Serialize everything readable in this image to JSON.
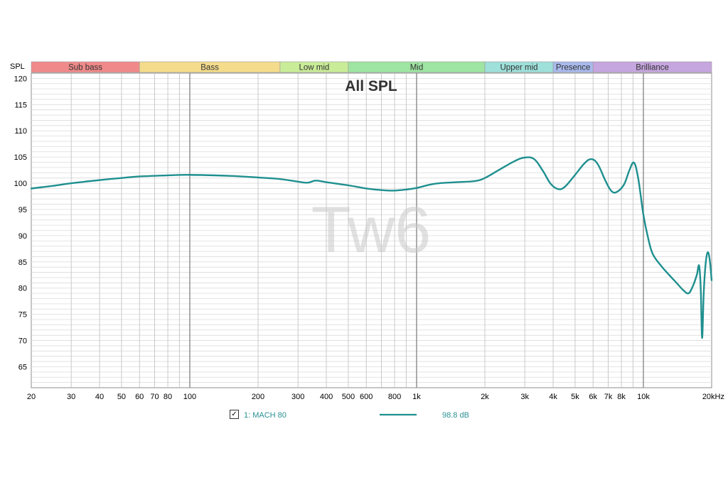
{
  "chart_data": {
    "type": "line",
    "title": "All SPL",
    "watermark": "Tw6",
    "ylabel": "SPL",
    "x_scale": "log",
    "xlim": [
      20,
      20000
    ],
    "ylim": [
      61,
      121
    ],
    "grid": true,
    "x_ticks": [
      {
        "value": 20,
        "label": "20"
      },
      {
        "value": 30,
        "label": "30"
      },
      {
        "value": 40,
        "label": "40"
      },
      {
        "value": 50,
        "label": "50"
      },
      {
        "value": 60,
        "label": "60"
      },
      {
        "value": 70,
        "label": "70"
      },
      {
        "value": 80,
        "label": "80"
      },
      {
        "value": 100,
        "label": "100"
      },
      {
        "value": 200,
        "label": "200"
      },
      {
        "value": 300,
        "label": "300"
      },
      {
        "value": 400,
        "label": "400"
      },
      {
        "value": 500,
        "label": "500"
      },
      {
        "value": 600,
        "label": "600"
      },
      {
        "value": 800,
        "label": "800"
      },
      {
        "value": 1000,
        "label": "1k"
      },
      {
        "value": 2000,
        "label": "2k"
      },
      {
        "value": 3000,
        "label": "3k"
      },
      {
        "value": 4000,
        "label": "4k"
      },
      {
        "value": 5000,
        "label": "5k"
      },
      {
        "value": 6000,
        "label": "6k"
      },
      {
        "value": 7000,
        "label": "7k"
      },
      {
        "value": 8000,
        "label": "8k"
      },
      {
        "value": 10000,
        "label": "10k"
      },
      {
        "value": 20000,
        "label": "20kHz"
      }
    ],
    "y_ticks": [
      65,
      70,
      75,
      80,
      85,
      90,
      95,
      100,
      105,
      110,
      115,
      120
    ],
    "bands": [
      {
        "label": "Sub bass",
        "from": 20,
        "to": 60,
        "color": "#f08a8a"
      },
      {
        "label": "Bass",
        "from": 60,
        "to": 250,
        "color": "#f4dc8c"
      },
      {
        "label": "Low mid",
        "from": 250,
        "to": 500,
        "color": "#c9ec98"
      },
      {
        "label": "Mid",
        "from": 500,
        "to": 2000,
        "color": "#9ee4a2"
      },
      {
        "label": "Upper mid",
        "from": 2000,
        "to": 4000,
        "color": "#9ee0da"
      },
      {
        "label": "Presence",
        "from": 4000,
        "to": 6000,
        "color": "#a9b9ec"
      },
      {
        "label": "Brilliance",
        "from": 6000,
        "to": 20000,
        "color": "#c6a6de"
      }
    ],
    "series": [
      {
        "name": "1: MACH 80",
        "legend_value": "98.8 dB",
        "color": "#1f8f8f",
        "points": [
          [
            20,
            99.0
          ],
          [
            25,
            99.5
          ],
          [
            30,
            100.0
          ],
          [
            40,
            100.6
          ],
          [
            50,
            101.0
          ],
          [
            60,
            101.3
          ],
          [
            80,
            101.5
          ],
          [
            100,
            101.6
          ],
          [
            150,
            101.4
          ],
          [
            200,
            101.1
          ],
          [
            250,
            100.8
          ],
          [
            300,
            100.3
          ],
          [
            330,
            100.1
          ],
          [
            360,
            100.5
          ],
          [
            400,
            100.2
          ],
          [
            500,
            99.6
          ],
          [
            600,
            99.0
          ],
          [
            700,
            98.7
          ],
          [
            800,
            98.6
          ],
          [
            900,
            98.8
          ],
          [
            1000,
            99.1
          ],
          [
            1200,
            99.9
          ],
          [
            1500,
            100.2
          ],
          [
            1800,
            100.4
          ],
          [
            2000,
            101.0
          ],
          [
            2300,
            102.5
          ],
          [
            2700,
            104.2
          ],
          [
            3000,
            104.9
          ],
          [
            3300,
            104.6
          ],
          [
            3600,
            102.4
          ],
          [
            3900,
            99.9
          ],
          [
            4200,
            98.9
          ],
          [
            4500,
            99.3
          ],
          [
            5000,
            101.6
          ],
          [
            5500,
            103.8
          ],
          [
            5900,
            104.6
          ],
          [
            6300,
            103.6
          ],
          [
            6800,
            100.5
          ],
          [
            7200,
            98.6
          ],
          [
            7600,
            98.3
          ],
          [
            8200,
            99.7
          ],
          [
            8700,
            102.6
          ],
          [
            9100,
            103.9
          ],
          [
            9500,
            100.8
          ],
          [
            10000,
            94.0
          ],
          [
            10500,
            89.5
          ],
          [
            11000,
            86.5
          ],
          [
            12000,
            84.2
          ],
          [
            13000,
            82.5
          ],
          [
            14000,
            81.0
          ],
          [
            15000,
            79.6
          ],
          [
            15800,
            79.0
          ],
          [
            16500,
            80.3
          ],
          [
            17200,
            82.5
          ],
          [
            17600,
            84.3
          ],
          [
            17900,
            80.0
          ],
          [
            18150,
            70.5
          ],
          [
            18450,
            79.0
          ],
          [
            18800,
            84.5
          ],
          [
            19200,
            86.8
          ],
          [
            19600,
            85.5
          ],
          [
            20000,
            81.5
          ]
        ]
      }
    ]
  }
}
